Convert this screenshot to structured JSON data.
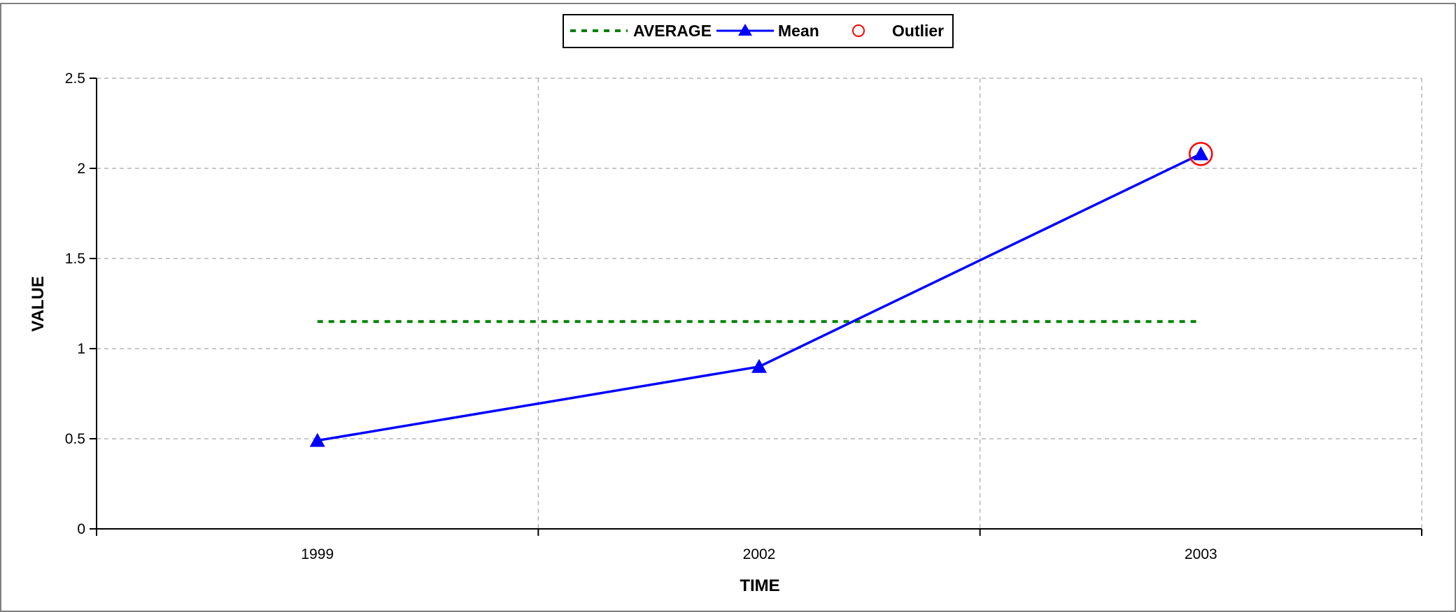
{
  "chart_data": {
    "type": "line",
    "title": "",
    "xlabel": "TIME",
    "ylabel": "VALUE",
    "categories": [
      "1999",
      "2002",
      "2003"
    ],
    "ylim": [
      0,
      2.5
    ],
    "y_ticks": [
      "0",
      "0.5",
      "1",
      "1.5",
      "2",
      "2.5"
    ],
    "grid": true,
    "legend_position": "top-center",
    "series": [
      {
        "name": "AVERAGE",
        "style": "dashed",
        "color": "#008000",
        "values": [
          1.15,
          1.15,
          1.15
        ]
      },
      {
        "name": "Mean",
        "style": "solid-triangle-markers",
        "color": "#0000ff",
        "values": [
          0.49,
          0.9,
          2.08
        ]
      },
      {
        "name": "Outlier",
        "style": "open-circle-markers",
        "color": "#ff0000",
        "values": [
          null,
          null,
          2.08
        ]
      }
    ]
  }
}
